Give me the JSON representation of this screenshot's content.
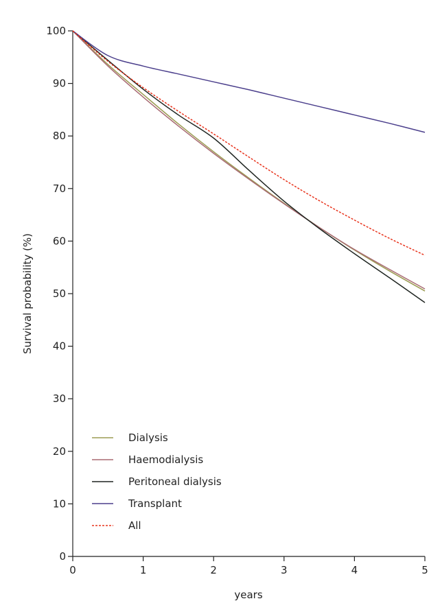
{
  "chart_data": {
    "type": "line",
    "xlabel": "years",
    "ylabel": "Survival probability (%)",
    "xlim": [
      0,
      5
    ],
    "ylim": [
      0,
      100
    ],
    "xticks": [
      0,
      1,
      2,
      3,
      4,
      5
    ],
    "yticks": [
      0,
      10,
      20,
      30,
      40,
      50,
      60,
      70,
      80,
      90,
      100
    ],
    "grid": false,
    "legend_position": "bottom-left",
    "x": [
      0,
      0.5,
      1,
      1.5,
      2,
      2.5,
      3,
      3.5,
      4,
      4.5,
      5
    ],
    "series": [
      {
        "name": "Dialysis",
        "color": "#9b9b52",
        "dash": "solid",
        "values": [
          100,
          93.6,
          87.9,
          82.3,
          77.0,
          72.0,
          67.2,
          62.6,
          58.3,
          54.3,
          50.5
        ]
      },
      {
        "name": "Haemodialysis",
        "color": "#a86a72",
        "dash": "solid",
        "values": [
          100,
          93.3,
          87.4,
          81.9,
          76.7,
          71.8,
          67.1,
          62.6,
          58.4,
          54.6,
          50.9
        ]
      },
      {
        "name": "Peritoneal dialysis",
        "color": "#1e2420",
        "dash": "solid",
        "values": [
          100,
          94.4,
          88.9,
          84.0,
          79.6,
          73.5,
          67.6,
          62.4,
          57.6,
          53.0,
          48.3
        ]
      },
      {
        "name": "Transplant",
        "color": "#4b3f8c",
        "dash": "solid",
        "values": [
          100,
          95.3,
          93.3,
          91.8,
          90.3,
          88.8,
          87.2,
          85.6,
          84.0,
          82.4,
          80.7
        ]
      },
      {
        "name": "All",
        "color": "#e8331c",
        "dash": "dotted",
        "values": [
          100,
          94.2,
          89.2,
          84.7,
          80.4,
          76.0,
          71.7,
          67.7,
          64.0,
          60.5,
          57.3
        ]
      }
    ]
  }
}
